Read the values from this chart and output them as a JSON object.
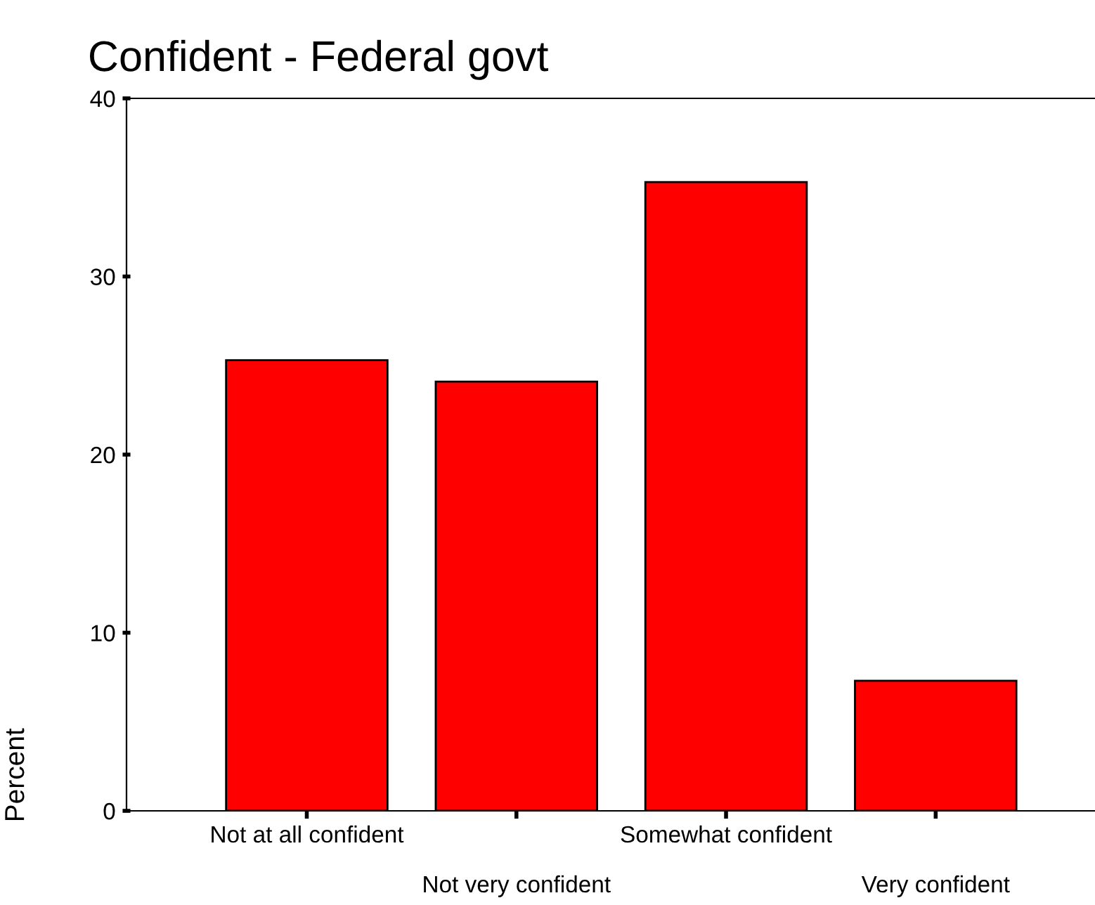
{
  "chart_data": {
    "type": "bar",
    "title": "Confident - Federal govt",
    "ylabel": "Percent",
    "categories": [
      "Not at all confident",
      "Not very confident",
      "Somewhat confident",
      "Very confident"
    ],
    "values": [
      25.3,
      24.1,
      35.3,
      7.3
    ],
    "color": "#ff0000",
    "ylim": [
      0,
      40
    ],
    "yticks": [
      0,
      10,
      20,
      30,
      40
    ],
    "grid": false,
    "legend": false
  }
}
